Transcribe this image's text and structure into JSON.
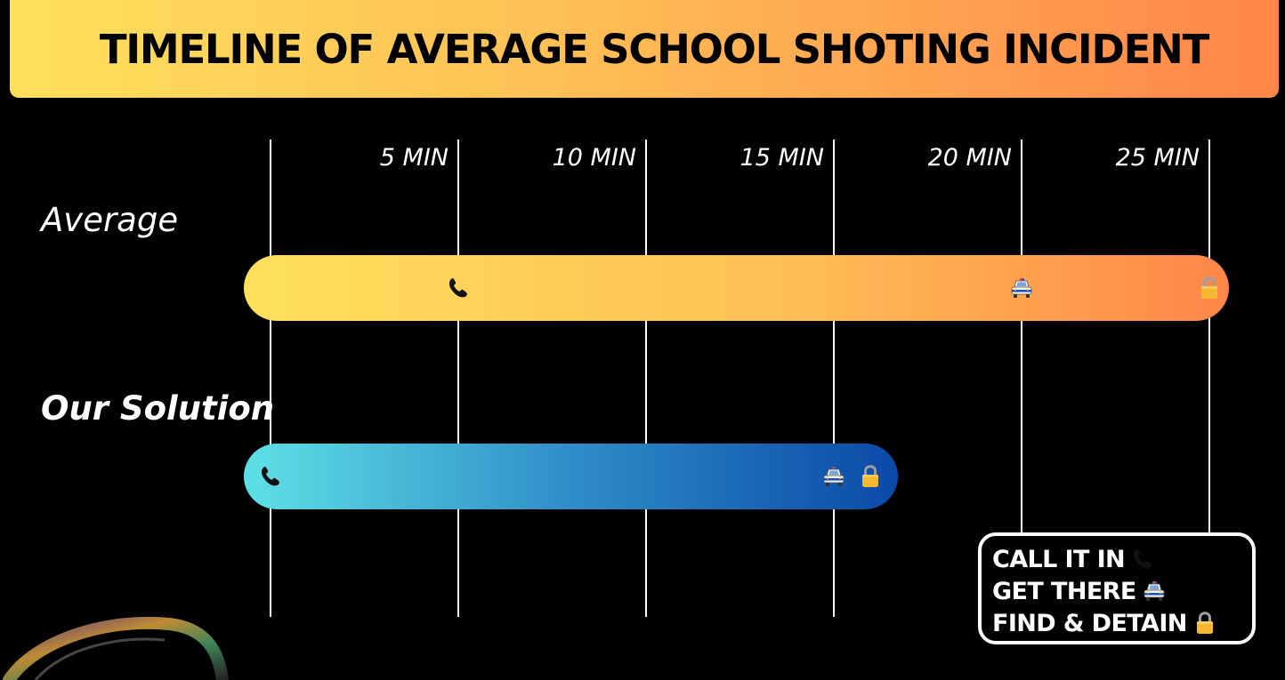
{
  "title": "TIMELINE OF AVERAGE SCHOOL SHOTING INCIDENT",
  "icons": {
    "call": "phone-icon",
    "arrive": "police-car-icon",
    "detain": "lock-icon"
  },
  "colors": {
    "background": "#000000",
    "average_gradient": [
      "#ffe05c",
      "#ff8648"
    ],
    "solution_gradient": [
      "#5ee0e6",
      "#0a4aa8"
    ],
    "phone": "#111111",
    "lock": "#f7b731"
  },
  "chart_data": {
    "type": "bar",
    "orientation": "horizontal",
    "x_unit": "MIN",
    "x_ticks": [
      {
        "value": 5,
        "label": "5 MIN"
      },
      {
        "value": 10,
        "label": "10 MIN"
      },
      {
        "value": 15,
        "label": "15 MIN"
      },
      {
        "value": 20,
        "label": "20 MIN"
      },
      {
        "value": 25,
        "label": "25 MIN"
      }
    ],
    "xlim": [
      0,
      25
    ],
    "grid": true,
    "series": [
      {
        "name": "Average",
        "start": 0,
        "end": 25,
        "markers": [
          {
            "event": "call",
            "time": 5
          },
          {
            "event": "arrive",
            "time": 20
          },
          {
            "event": "detain",
            "time": 25
          }
        ]
      },
      {
        "name": "Our Solution",
        "start": 0,
        "end": 15,
        "markers": [
          {
            "event": "call",
            "time": 0
          },
          {
            "event": "arrive",
            "time": 15
          },
          {
            "event": "detain",
            "time": 16
          }
        ]
      }
    ],
    "legend": {
      "placement": "bottom-right",
      "items": [
        {
          "event": "call",
          "label": "CALL IT IN"
        },
        {
          "event": "arrive",
          "label": "GET THERE"
        },
        {
          "event": "detain",
          "label": "FIND & DETAIN"
        }
      ]
    }
  }
}
